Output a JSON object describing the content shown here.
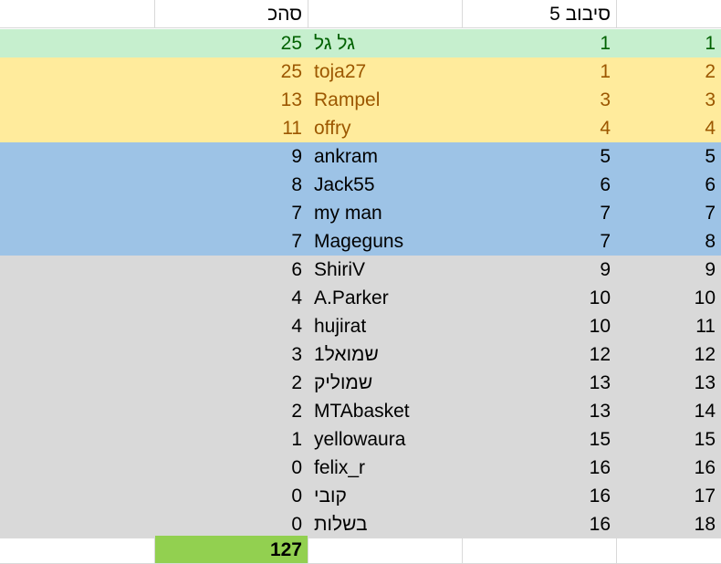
{
  "header": {
    "total_label": "סהכ",
    "round_label": "סיבוב 5"
  },
  "colors": {
    "first": "#c6efce",
    "first_text": "#006100",
    "top": "#ffeb9c",
    "top_text": "#9c5700",
    "mid": "#9dc3e6",
    "rest": "#d9d9d9",
    "total_fill": "#92d050",
    "default_text": "#000000"
  },
  "rows": [
    {
      "rank": "1",
      "round_rank": "1",
      "name": "גל גל",
      "score": "25",
      "tier": "first"
    },
    {
      "rank": "2",
      "round_rank": "1",
      "name": "toja27",
      "score": "25",
      "tier": "top"
    },
    {
      "rank": "3",
      "round_rank": "3",
      "name": "Rampel",
      "score": "13",
      "tier": "top"
    },
    {
      "rank": "4",
      "round_rank": "4",
      "name": "offry",
      "score": "11",
      "tier": "top"
    },
    {
      "rank": "5",
      "round_rank": "5",
      "name": "ankram",
      "score": "9",
      "tier": "mid"
    },
    {
      "rank": "6",
      "round_rank": "6",
      "name": "Jack55",
      "score": "8",
      "tier": "mid"
    },
    {
      "rank": "7",
      "round_rank": "7",
      "name": "my man",
      "score": "7",
      "tier": "mid"
    },
    {
      "rank": "8",
      "round_rank": "7",
      "name": "Mageguns",
      "score": "7",
      "tier": "mid"
    },
    {
      "rank": "9",
      "round_rank": "9",
      "name": "ShiriV",
      "score": "6",
      "tier": "rest"
    },
    {
      "rank": "10",
      "round_rank": "10",
      "name": "A.Parker",
      "score": "4",
      "tier": "rest"
    },
    {
      "rank": "11",
      "round_rank": "10",
      "name": "hujirat",
      "score": "4",
      "tier": "rest"
    },
    {
      "rank": "12",
      "round_rank": "12",
      "name": "שמואל1",
      "score": "3",
      "tier": "rest"
    },
    {
      "rank": "13",
      "round_rank": "13",
      "name": "שמוליק",
      "score": "2",
      "tier": "rest"
    },
    {
      "rank": "14",
      "round_rank": "13",
      "name": "MTAbasket",
      "score": "2",
      "tier": "rest"
    },
    {
      "rank": "15",
      "round_rank": "15",
      "name": "yellowaura",
      "score": "1",
      "tier": "rest"
    },
    {
      "rank": "16",
      "round_rank": "16",
      "name": "felix_r",
      "score": "0",
      "tier": "rest"
    },
    {
      "rank": "17",
      "round_rank": "16",
      "name": "קובי",
      "score": "0",
      "tier": "rest"
    },
    {
      "rank": "18",
      "round_rank": "16",
      "name": "בשלות",
      "score": "0",
      "tier": "rest"
    }
  ],
  "total": {
    "value": "127"
  }
}
